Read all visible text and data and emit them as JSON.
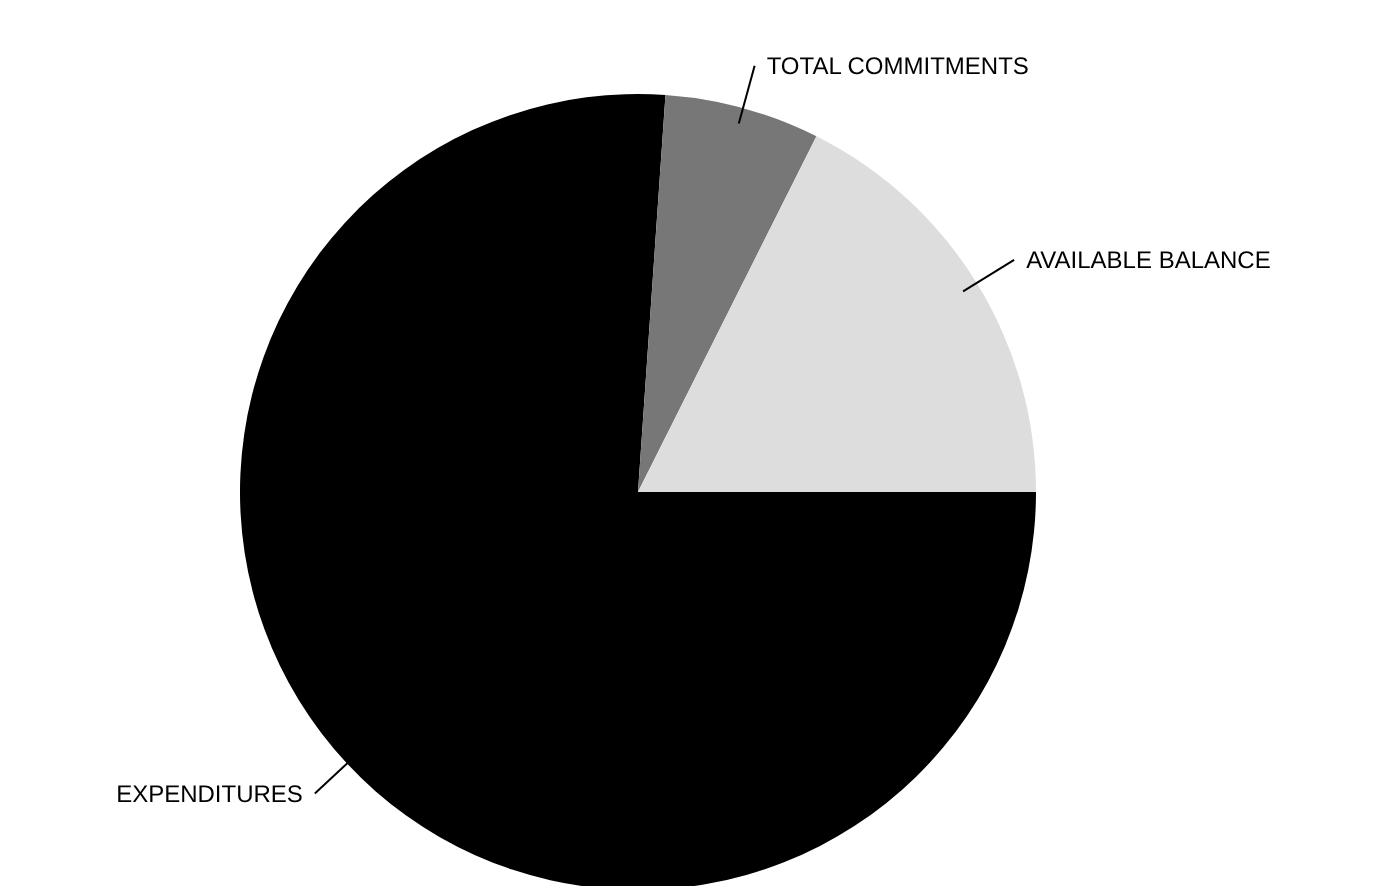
{
  "chart_data": {
    "type": "pie",
    "categories": [
      "EXPENDITURES",
      "TOTAL COMMITMENTS",
      "AVAILABLE BALANCE"
    ],
    "values": [
      76.1,
      6.3,
      17.6
    ],
    "colors": [
      "#000000",
      "#777777",
      "#dddddd"
    ]
  }
}
